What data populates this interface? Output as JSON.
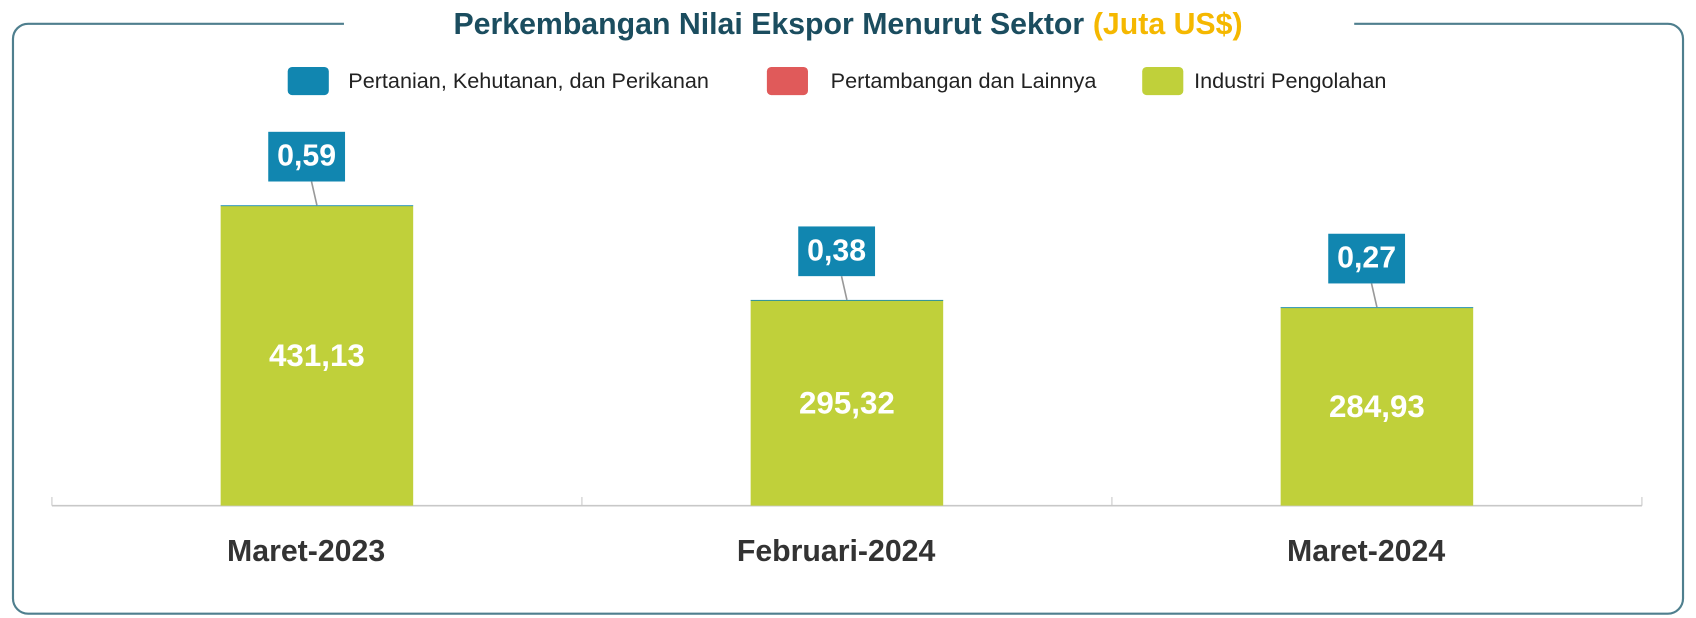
{
  "chart_data": {
    "type": "stacked_bar",
    "title": "Perkembangan Nilai Ekspor Menurut Sektor",
    "title_unit": "(Juta US$)",
    "categories": [
      "Maret-2023",
      "Februari-2024",
      "Maret-2024"
    ],
    "series": [
      {
        "name": "Pertanian, Kehutanan, dan Perikanan",
        "color": "#1186b0",
        "values": [
          0.59,
          0.38,
          0.27
        ],
        "value_labels": [
          "0,59",
          "0,38",
          "0,27"
        ]
      },
      {
        "name": "Pertambangan dan Lainnya",
        "color": "#e05a5a",
        "values": [
          null,
          null,
          null
        ]
      },
      {
        "name": "Industri Pengolahan",
        "color": "#c0d03a",
        "values": [
          431.13,
          295.32,
          284.93
        ],
        "value_labels": [
          "431,13",
          "295,32",
          "284,93"
        ]
      }
    ]
  }
}
